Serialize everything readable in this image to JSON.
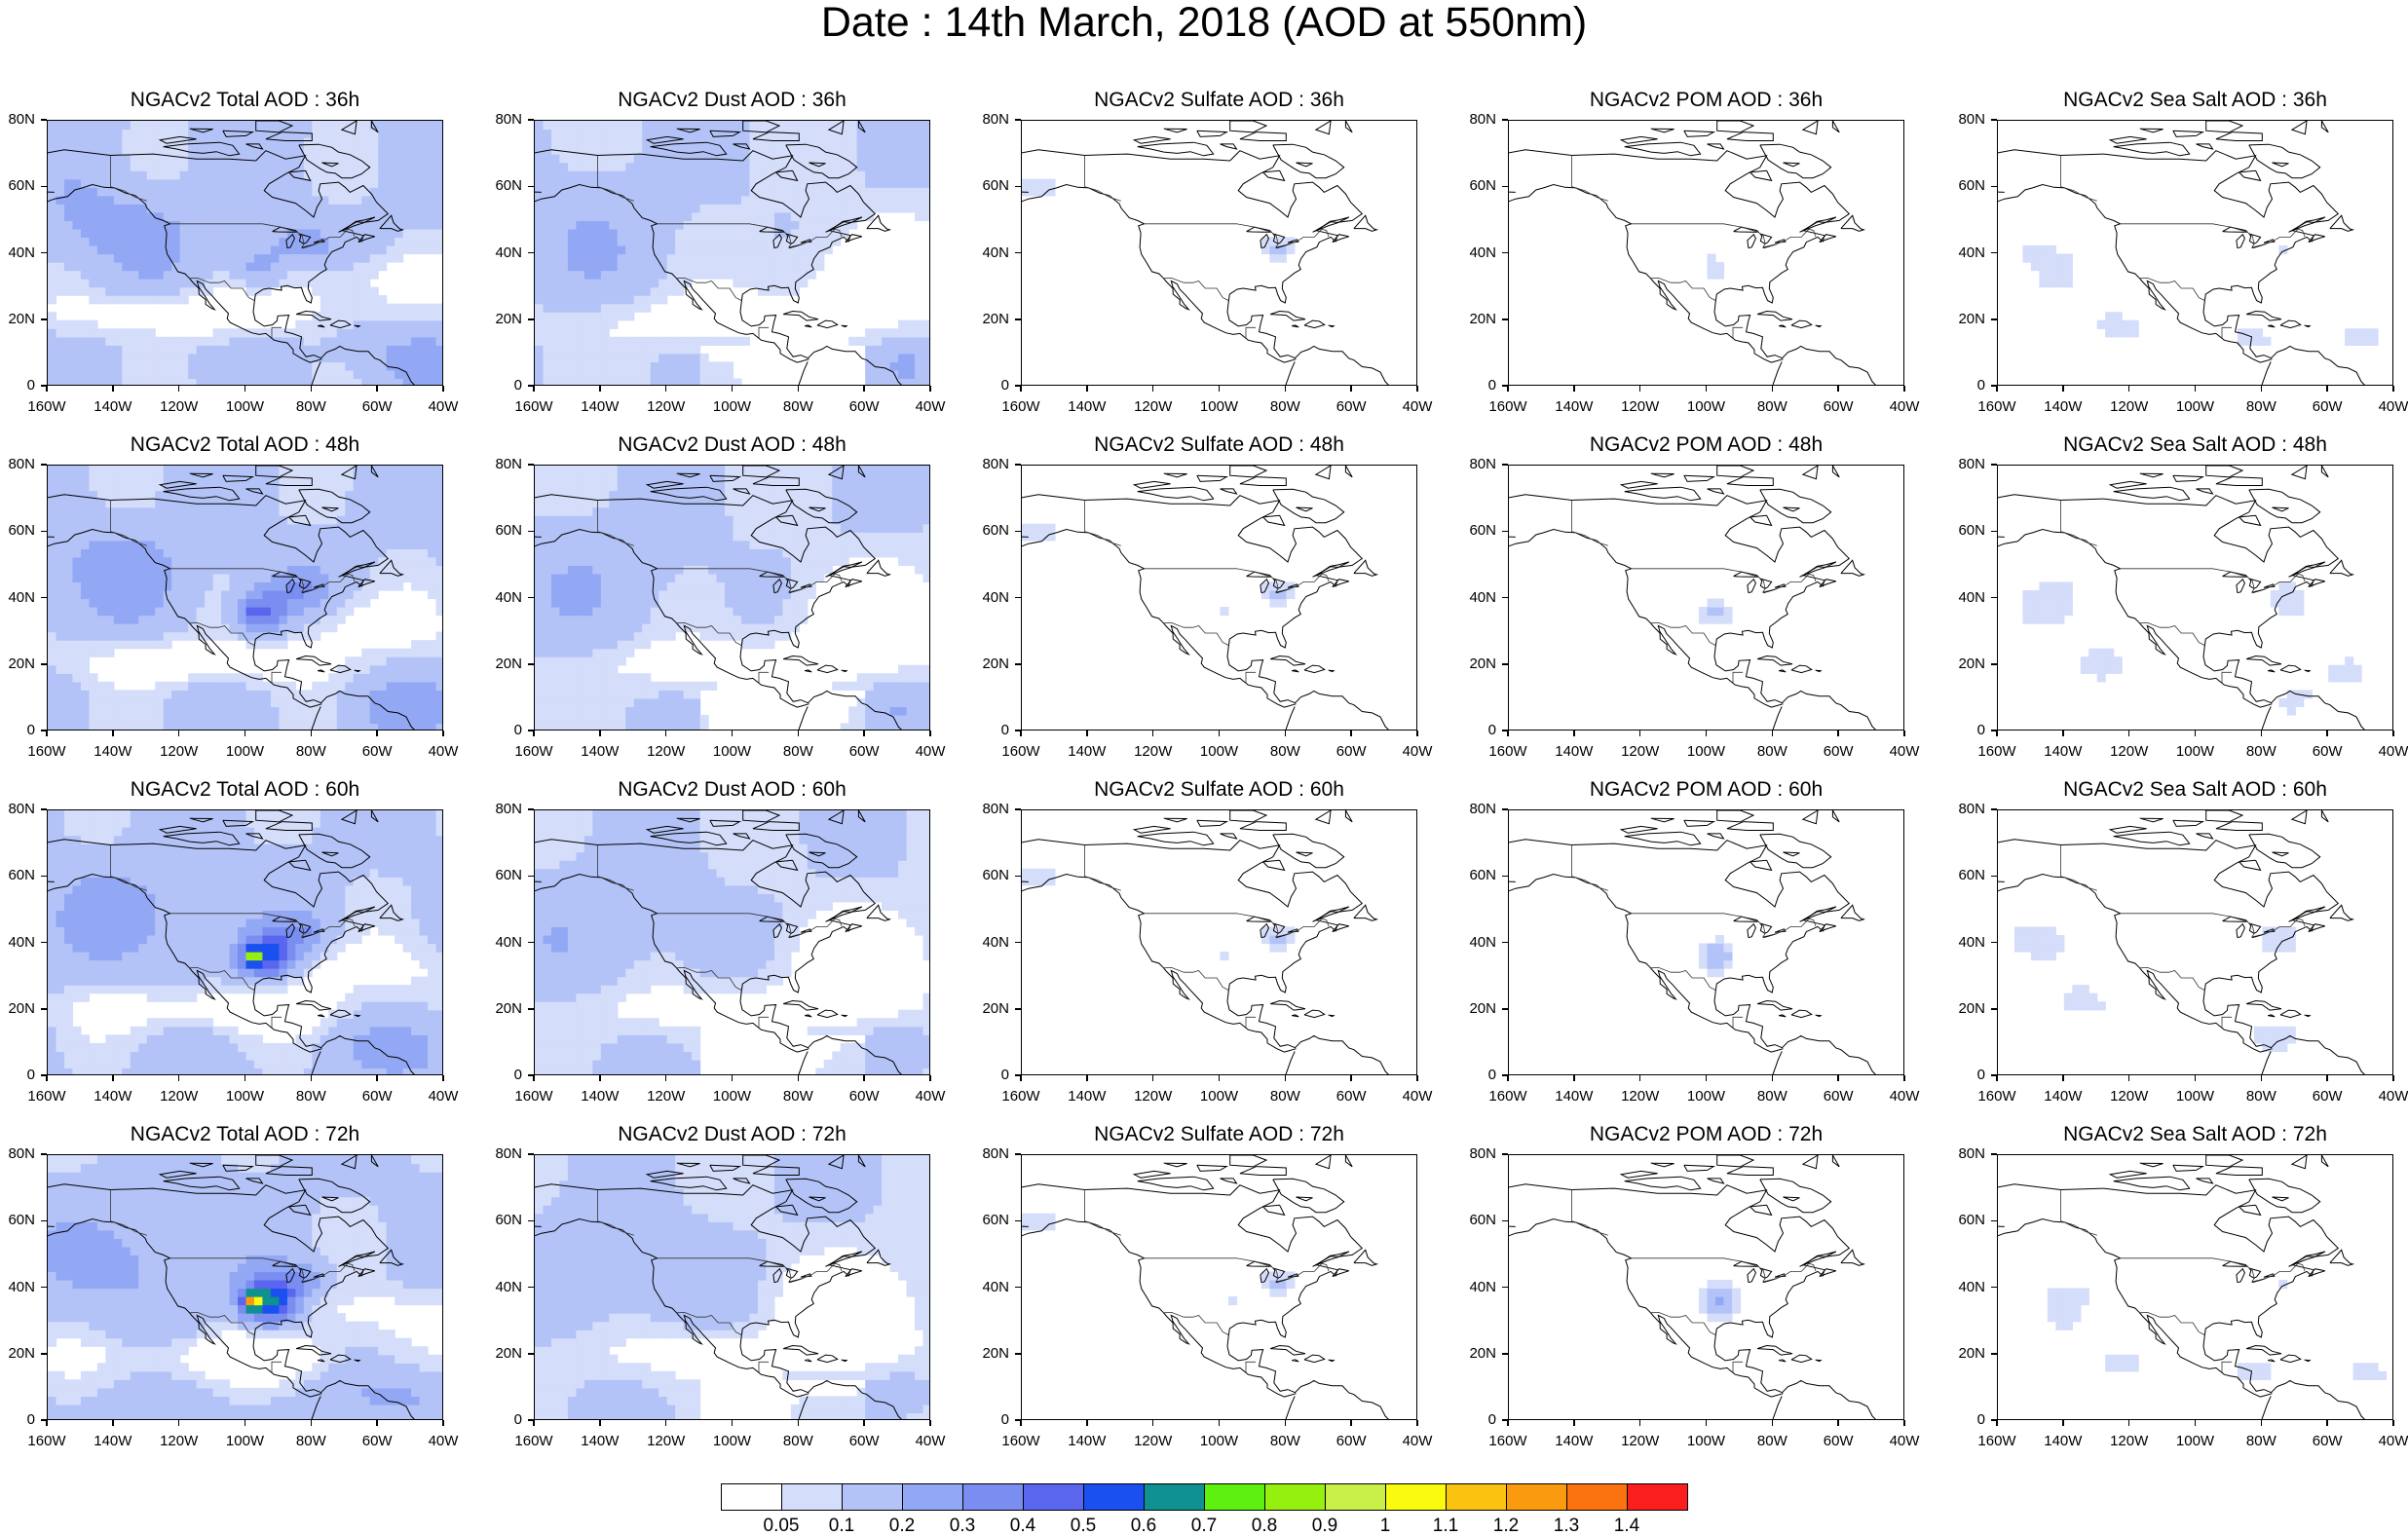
{
  "title": "Date : 14th March, 2018 (AOD at 550nm)",
  "map": {
    "lon_range": [
      -160,
      -40
    ],
    "lat_range": [
      0,
      80
    ],
    "x_tick_labels": [
      "160W",
      "140W",
      "120W",
      "100W",
      "80W",
      "60W",
      "40W"
    ],
    "y_tick_labels": [
      "0",
      "20N",
      "40N",
      "60N",
      "80N"
    ]
  },
  "panels": [
    [
      {
        "title": "NGACv2 Total AOD : 36h",
        "species": "total",
        "hour": 36
      },
      {
        "title": "NGACv2 Dust AOD : 36h",
        "species": "dust",
        "hour": 36
      },
      {
        "title": "NGACv2 Sulfate AOD : 36h",
        "species": "sulfate",
        "hour": 36
      },
      {
        "title": "NGACv2 POM AOD : 36h",
        "species": "pom",
        "hour": 36
      },
      {
        "title": "NGACv2 Sea Salt AOD : 36h",
        "species": "seasalt",
        "hour": 36
      }
    ],
    [
      {
        "title": "NGACv2 Total AOD : 48h",
        "species": "total",
        "hour": 48
      },
      {
        "title": "NGACv2 Dust AOD : 48h",
        "species": "dust",
        "hour": 48
      },
      {
        "title": "NGACv2 Sulfate AOD : 48h",
        "species": "sulfate",
        "hour": 48
      },
      {
        "title": "NGACv2 POM AOD : 48h",
        "species": "pom",
        "hour": 48
      },
      {
        "title": "NGACv2 Sea Salt AOD : 48h",
        "species": "seasalt",
        "hour": 48
      }
    ],
    [
      {
        "title": "NGACv2 Total AOD : 60h",
        "species": "total",
        "hour": 60
      },
      {
        "title": "NGACv2 Dust AOD : 60h",
        "species": "dust",
        "hour": 60
      },
      {
        "title": "NGACv2 Sulfate AOD : 60h",
        "species": "sulfate",
        "hour": 60
      },
      {
        "title": "NGACv2 POM AOD : 60h",
        "species": "pom",
        "hour": 60
      },
      {
        "title": "NGACv2 Sea Salt AOD : 60h",
        "species": "seasalt",
        "hour": 60
      }
    ],
    [
      {
        "title": "NGACv2 Total AOD : 72h",
        "species": "total",
        "hour": 72
      },
      {
        "title": "NGACv2 Dust AOD : 72h",
        "species": "dust",
        "hour": 72
      },
      {
        "title": "NGACv2 Sulfate AOD : 72h",
        "species": "sulfate",
        "hour": 72
      },
      {
        "title": "NGACv2 POM AOD : 72h",
        "species": "pom",
        "hour": 72
      },
      {
        "title": "NGACv2 Sea Salt  AOD : 72h",
        "species": "seasalt",
        "hour": 72
      }
    ]
  ],
  "colorbar": {
    "levels": [
      "0.05",
      "0.1",
      "0.2",
      "0.3",
      "0.4",
      "0.5",
      "0.6",
      "0.7",
      "0.8",
      "0.9",
      "1",
      "1.1",
      "1.2",
      "1.3",
      "1.4"
    ],
    "colors": [
      "#ffffff",
      "#d4ddfa",
      "#b3c3f7",
      "#93a8f5",
      "#7a8ef2",
      "#5a66ee",
      "#1a4ff0",
      "#0f9191",
      "#5ef00f",
      "#96f00f",
      "#c8f049",
      "#fafa0f",
      "#fac30f",
      "#fa9b0f",
      "#fa730f",
      "#fa1e1e"
    ]
  }
}
